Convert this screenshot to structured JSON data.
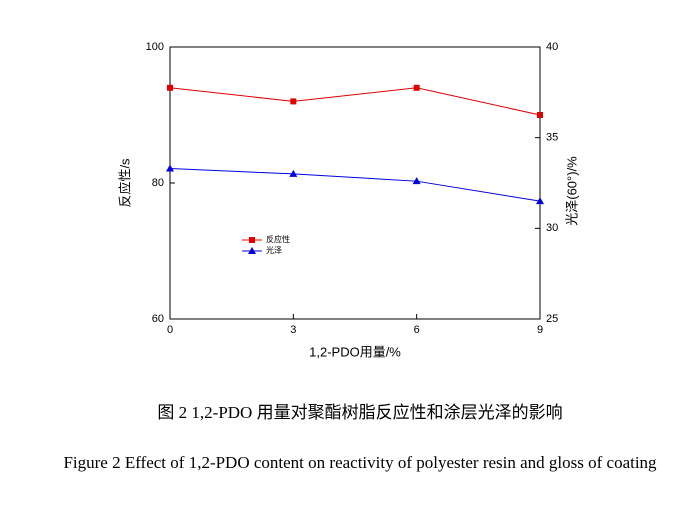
{
  "chart_data": {
    "type": "line",
    "x_label": "1,2-PDO用量/%",
    "y_label": "反应性/s",
    "y2_label": "光泽(60°)/%",
    "x": [
      0,
      3,
      6,
      9
    ],
    "xlim": [
      0,
      9
    ],
    "xticks": [
      0,
      3,
      6,
      9
    ],
    "ylim": [
      60,
      100
    ],
    "yticks": [
      60,
      80,
      100
    ],
    "y2lim": [
      25,
      40
    ],
    "y2ticks": [
      25,
      30,
      35,
      40
    ],
    "series": [
      {
        "name": "反应性",
        "color": "#e00000",
        "marker": "square",
        "values": [
          94,
          92,
          94,
          90
        ]
      },
      {
        "name": "光泽",
        "color": "#0000e0",
        "marker": "triangle",
        "axis": "y2",
        "values": [
          33.3,
          33,
          32.6,
          31.5
        ]
      }
    ],
    "caption_cn": "图 2 1,2-PDO 用量对聚酯树脂反应性和涂层光泽的影响",
    "caption_en": "Figure 2 Effect of 1,2-PDO content on reactivity of polyester resin and gloss of coating"
  }
}
